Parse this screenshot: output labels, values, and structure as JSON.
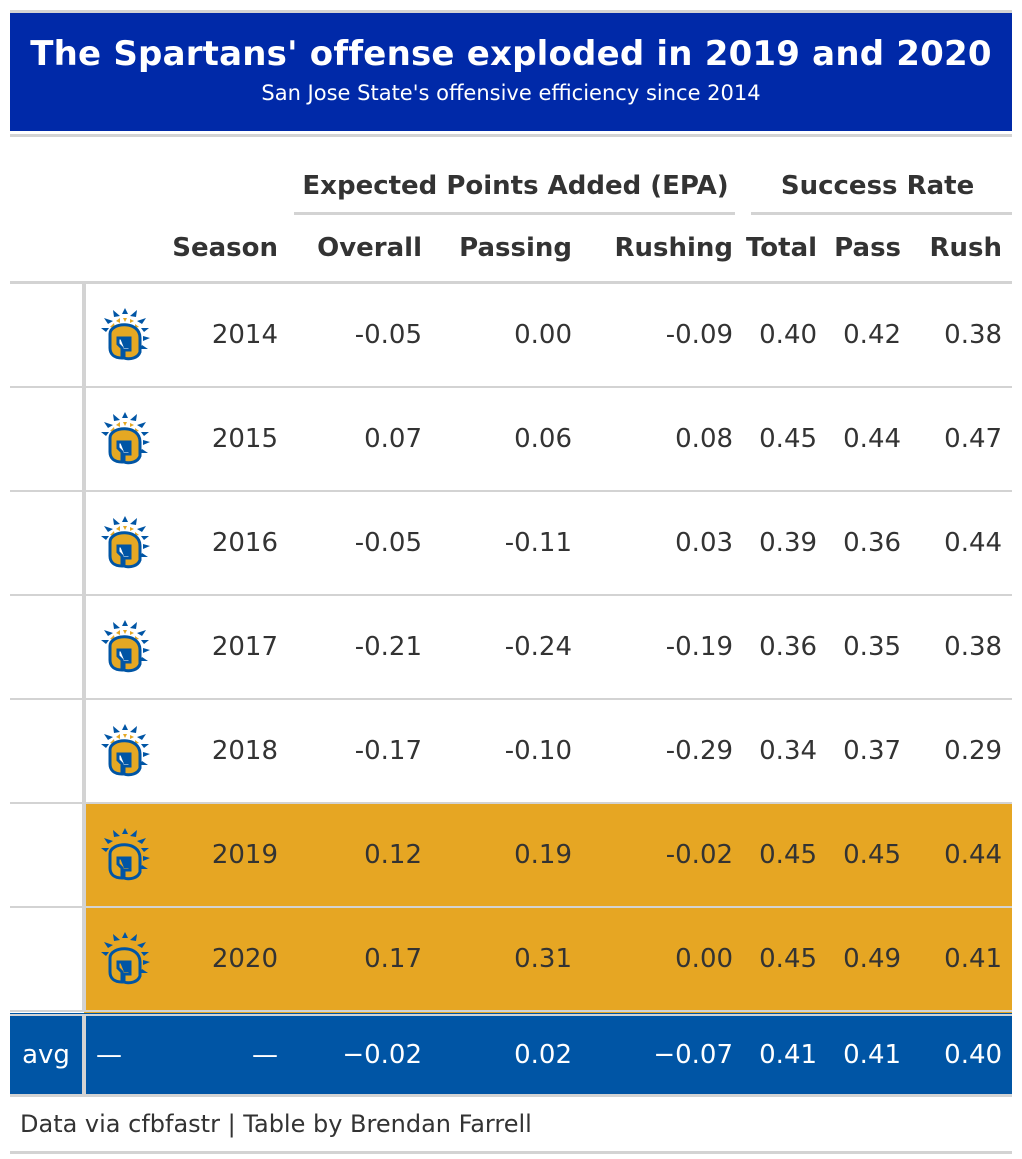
{
  "title": "The Spartans' offense exploded in 2019 and 2020",
  "subtitle": "San Jose State's offensive efficiency since 2014",
  "spanners": {
    "epa": "Expected Points Added (EPA)",
    "success": "Success Rate"
  },
  "columns": {
    "season": "Season",
    "overall": "Overall",
    "passing": "Passing",
    "rushing": "Rushing",
    "total": "Total",
    "pass": "Pass",
    "rush": "Rush"
  },
  "logo_icon": "spartan-helmet-icon",
  "colors": {
    "title_bg": "#0029a8",
    "highlight": "#e6a623",
    "avg_bg": "#0055a5",
    "logo_blue": "#0055a5",
    "logo_gold": "#e5a823"
  },
  "rows": [
    {
      "season": "2014",
      "overall": "-0.05",
      "passing": "0.00",
      "rushing": "-0.09",
      "total": "0.40",
      "pass": "0.42",
      "rush": "0.38",
      "highlight": false
    },
    {
      "season": "2015",
      "overall": "0.07",
      "passing": "0.06",
      "rushing": "0.08",
      "total": "0.45",
      "pass": "0.44",
      "rush": "0.47",
      "highlight": false
    },
    {
      "season": "2016",
      "overall": "-0.05",
      "passing": "-0.11",
      "rushing": "0.03",
      "total": "0.39",
      "pass": "0.36",
      "rush": "0.44",
      "highlight": false
    },
    {
      "season": "2017",
      "overall": "-0.21",
      "passing": "-0.24",
      "rushing": "-0.19",
      "total": "0.36",
      "pass": "0.35",
      "rush": "0.38",
      "highlight": false
    },
    {
      "season": "2018",
      "overall": "-0.17",
      "passing": "-0.10",
      "rushing": "-0.29",
      "total": "0.34",
      "pass": "0.37",
      "rush": "0.29",
      "highlight": false
    },
    {
      "season": "2019",
      "overall": "0.12",
      "passing": "0.19",
      "rushing": "-0.02",
      "total": "0.45",
      "pass": "0.45",
      "rush": "0.44",
      "highlight": true
    },
    {
      "season": "2020",
      "overall": "0.17",
      "passing": "0.31",
      "rushing": "0.00",
      "total": "0.45",
      "pass": "0.49",
      "rush": "0.41",
      "highlight": true
    }
  ],
  "summary": {
    "label": "avg",
    "logo": "—",
    "season": "—",
    "overall": "−0.02",
    "passing": "0.02",
    "rushing": "−0.07",
    "total": "0.41",
    "pass": "0.41",
    "rush": "0.40"
  },
  "footer": "Data via cfbfastr | Table by Brendan Farrell"
}
